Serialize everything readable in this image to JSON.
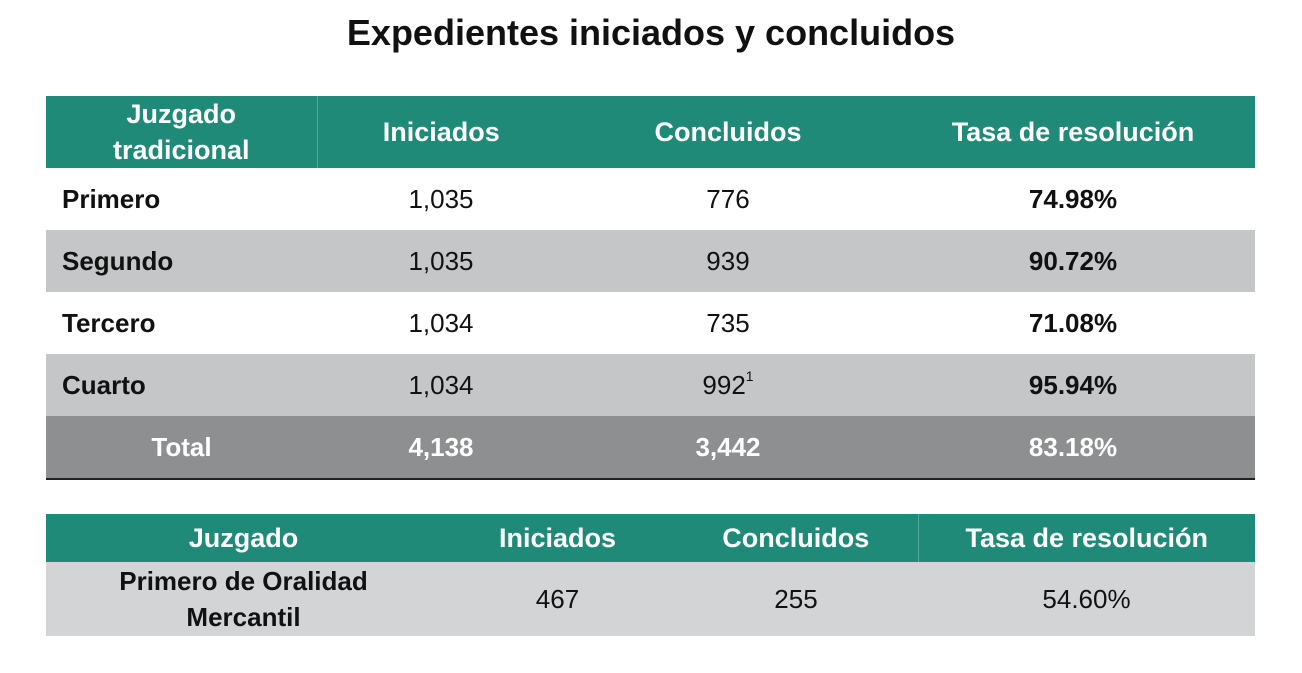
{
  "title": "Expedientes iniciados y concluidos",
  "table1": {
    "headers": [
      "Juzgado tradicional",
      "Iniciados",
      "Concluidos",
      "Tasa de resolución"
    ],
    "rows": [
      {
        "name": "Primero",
        "iniciados": "1,035",
        "concluidos": "776",
        "footnote": "",
        "tasa": "74.98%"
      },
      {
        "name": "Segundo",
        "iniciados": "1,035",
        "concluidos": "939",
        "footnote": "",
        "tasa": "90.72%"
      },
      {
        "name": "Tercero",
        "iniciados": "1,034",
        "concluidos": "735",
        "footnote": "",
        "tasa": "71.08%"
      },
      {
        "name": "Cuarto",
        "iniciados": "1,034",
        "concluidos": "992",
        "footnote": "1",
        "tasa": "95.94%"
      }
    ],
    "total": {
      "name": "Total",
      "iniciados": "4,138",
      "concluidos": "3,442",
      "tasa": "83.18%"
    }
  },
  "table2": {
    "headers": [
      "Juzgado",
      "Iniciados",
      "Concluidos",
      "Tasa de resolución"
    ],
    "rows": [
      {
        "name": "Primero de Oralidad Mercantil",
        "iniciados": "467",
        "concluidos": "255",
        "tasa": "54.60%"
      }
    ]
  }
}
